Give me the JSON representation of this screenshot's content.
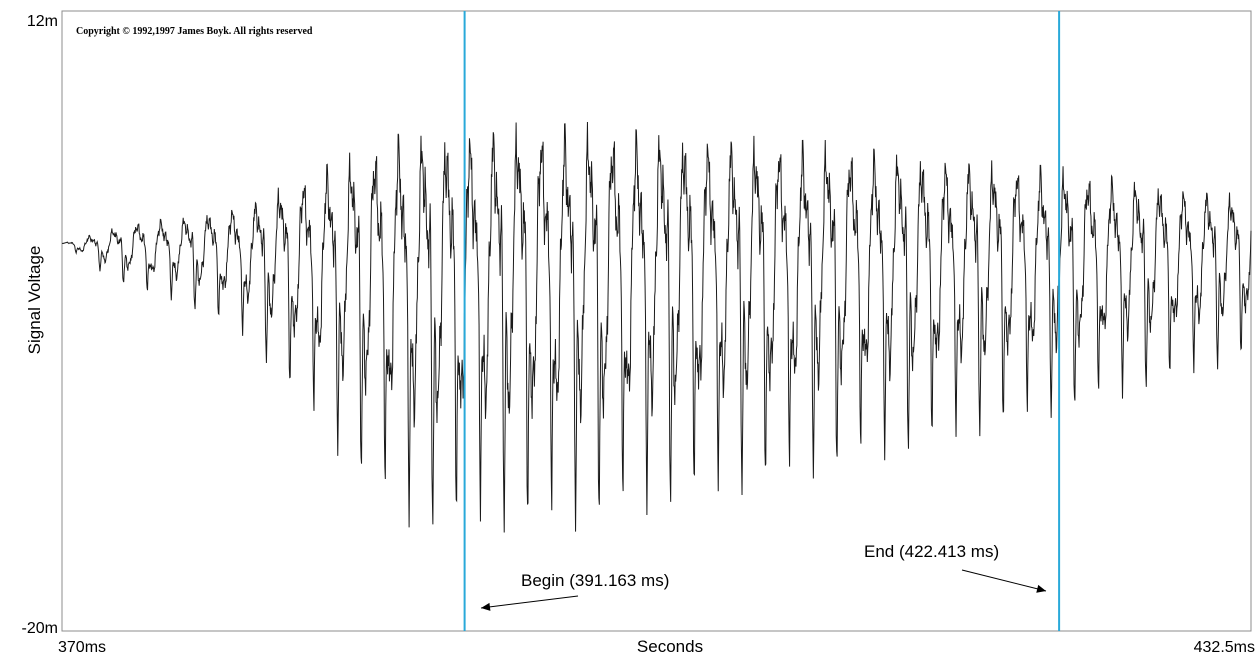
{
  "chart_data": {
    "type": "line",
    "ylabel": "Signal Voltage",
    "xlabel": "Seconds",
    "x_tick_labels": [
      "370ms",
      "432.5ms"
    ],
    "y_tick_labels": [
      "12m",
      "-20m"
    ],
    "xlim": [
      370,
      432.5
    ],
    "ylim": [
      -20,
      12
    ],
    "copyright": "Copyright © 1992,1997 James Boyk. All rights reserved",
    "markers": [
      {
        "label": "Begin (391.163 ms)",
        "x": 391.163
      },
      {
        "label": "End (422.413 ms)",
        "x": 422.413
      }
    ],
    "marker_color": "#29a9d9",
    "series": [
      {
        "color": "#1a1a1a",
        "x": [
          370,
          372,
          374,
          376,
          378,
          380,
          382,
          384,
          386,
          388,
          390,
          391,
          392,
          394,
          396,
          398,
          400,
          402,
          404,
          406,
          408,
          410,
          412,
          414,
          416,
          418,
          420,
          422,
          424,
          426,
          428,
          430,
          432.5
        ],
        "y_max": [
          0.0,
          0.8,
          1.8,
          2.0,
          2.5,
          3.0,
          4.5,
          5.5,
          6.5,
          8.0,
          7.5,
          8.0,
          8.5,
          8.8,
          8.8,
          8.7,
          8.6,
          8.5,
          8.3,
          8.2,
          8.0,
          7.8,
          7.5,
          7.2,
          7.0,
          6.5,
          6.2,
          6.0,
          5.5,
          5.0,
          4.5,
          4.0,
          3.5
        ],
        "y_min": [
          0.0,
          -1.5,
          -2.5,
          -3.0,
          -4.0,
          -5.5,
          -8.0,
          -11.0,
          -13.5,
          -15.5,
          -16.5,
          -16.0,
          -15.5,
          -15.5,
          -15.3,
          -15.0,
          -14.5,
          -14.0,
          -13.5,
          -13.0,
          -12.5,
          -12.0,
          -11.5,
          -11.0,
          -10.5,
          -10.0,
          -9.5,
          -9.0,
          -8.5,
          -8.0,
          -7.5,
          -7.0,
          -6.0
        ]
      }
    ],
    "grid": false
  }
}
